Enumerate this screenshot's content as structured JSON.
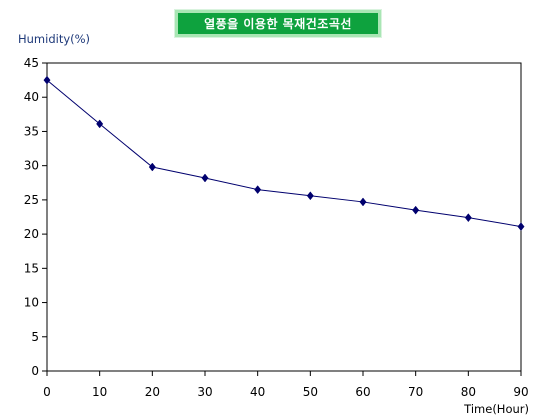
{
  "chart_data": {
    "type": "line",
    "title": "열풍을 이용한 목재건조곡선",
    "ylabel": "Humidity(%)",
    "xlabel": "Time(Hour)",
    "x": [
      0,
      10,
      20,
      30,
      40,
      50,
      60,
      70,
      80,
      90
    ],
    "series": [
      {
        "values": [
          42.5,
          36.1,
          29.8,
          28.2,
          26.5,
          25.6,
          24.7,
          23.5,
          22.4,
          21.1
        ]
      }
    ],
    "xlim": [
      0,
      90
    ],
    "ylim": [
      0,
      45
    ],
    "xticks": [
      "0",
      "10",
      "20",
      "30",
      "40",
      "50",
      "60",
      "70",
      "80",
      "90"
    ],
    "yticks": [
      "0",
      "5",
      "10",
      "15",
      "20",
      "25",
      "30",
      "35",
      "40",
      "45"
    ],
    "grid": false,
    "legend": "none",
    "line_color": "#00006e",
    "marker": "diamond",
    "title_bg_color": "#0ea23e",
    "title_border_color": "#a9e6b4",
    "title_text_color": "#ffffff",
    "ylabel_color": "#1f3a7a"
  }
}
